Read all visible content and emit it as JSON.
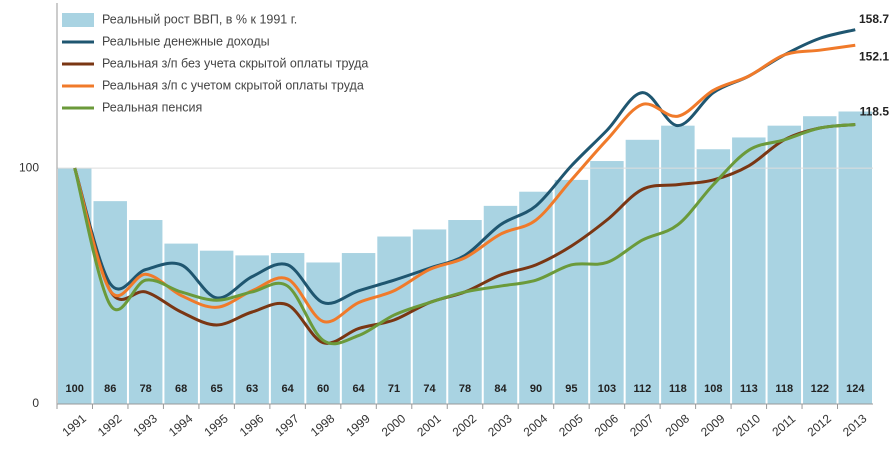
{
  "chart_data": {
    "type": "bar+line",
    "categories": [
      "1991",
      "1992",
      "1993",
      "1994",
      "1995",
      "1996",
      "1997",
      "1998",
      "1999",
      "2000",
      "2001",
      "2002",
      "2003",
      "2004",
      "2005",
      "2006",
      "2007",
      "2008",
      "2009",
      "2010",
      "2011",
      "2012",
      "2013"
    ],
    "bar_series": {
      "name": "Реальный рост ВВП, в % к 1991 г.",
      "color": "#a9d3e2",
      "values": [
        100,
        86,
        78,
        68,
        65,
        63,
        64,
        60,
        64,
        71,
        74,
        78,
        84,
        90,
        95,
        103,
        112,
        118,
        108,
        113,
        118,
        122,
        124
      ]
    },
    "series": [
      {
        "name": "Реальные денежные доходы",
        "color": "#1f5670",
        "values": [
          100,
          51,
          57,
          59,
          45,
          54,
          59,
          43,
          48,
          52.5,
          57.6,
          63,
          76,
          84,
          101,
          116,
          132,
          118,
          132,
          139,
          148,
          155,
          158.7
        ]
      },
      {
        "name": "Реальная з/п без учета скрытой оплаты труда",
        "color": "#7a3613",
        "values": [
          100,
          48,
          47.5,
          39,
          33.5,
          39,
          42,
          26,
          32,
          35.6,
          43,
          47.5,
          54.7,
          59,
          67,
          78,
          91,
          93,
          95,
          101,
          112,
          117,
          118.5
        ]
      },
      {
        "name": "Реальная з/п с учетом скрытой оплаты труда",
        "color": "#f07a2a",
        "values": [
          100,
          48,
          55,
          46,
          41,
          48,
          53,
          35,
          43,
          48,
          57,
          62,
          72,
          78,
          95,
          112,
          127,
          122,
          133,
          139,
          148,
          150,
          152.1
        ]
      },
      {
        "name": "Реальная пенсия",
        "color": "#6b9a3a",
        "values": [
          100,
          42,
          52.5,
          47.5,
          44,
          47.5,
          50,
          27,
          29,
          37.7,
          43,
          47.5,
          50,
          52.5,
          59,
          60,
          69.5,
          76,
          93,
          107.6,
          112,
          117,
          118.5
        ]
      }
    ],
    "ylim": [
      0,
      170
    ],
    "yticks": [
      0,
      100
    ],
    "grid": true
  }
}
